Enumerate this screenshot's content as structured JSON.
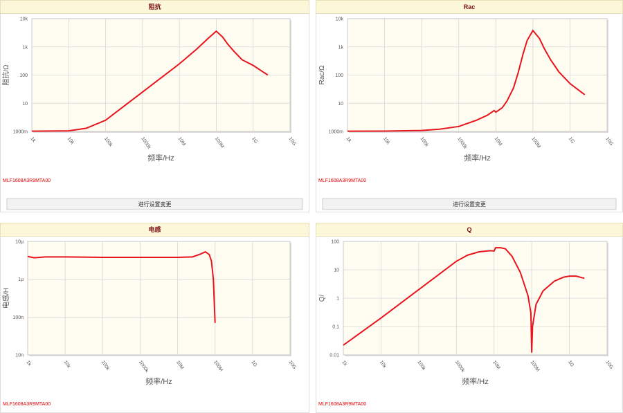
{
  "chart_data": [
    {
      "type": "line",
      "title": "阻抗",
      "xlabel": "频率/Hz",
      "ylabel": "阻抗/Ω",
      "note": "MLF1608A3R9MTA00",
      "button": "进行设置变更",
      "xscale": "log",
      "yscale": "log",
      "grid": true,
      "xlim": [
        1000,
        10000000000
      ],
      "ylim": [
        1,
        10000
      ],
      "xticks": [
        {
          "value": 1000,
          "label": "1k"
        },
        {
          "value": 10000,
          "label": "10k"
        },
        {
          "value": 100000,
          "label": "100k"
        },
        {
          "value": 1000000,
          "label": "1000k"
        },
        {
          "value": 10000000,
          "label": "10M"
        },
        {
          "value": 100000000,
          "label": "100M"
        },
        {
          "value": 1000000000,
          "label": "1G"
        },
        {
          "value": 10000000000,
          "label": "10G"
        }
      ],
      "yticks": [
        {
          "value": 1,
          "label": "1000m"
        },
        10,
        100,
        {
          "value": 1000,
          "label": "1k"
        },
        {
          "value": 10000,
          "label": "10k"
        }
      ],
      "x": [
        1000,
        10000,
        30000,
        100000,
        300000,
        1000000,
        3000000,
        10000000,
        30000000,
        60000000,
        100000000,
        150000000,
        200000000,
        300000000,
        500000000,
        1000000000,
        2500000000
      ],
      "series": [
        {
          "name": "阻抗",
          "color": "#e8141c",
          "values": [
            1.02,
            1.05,
            1.3,
            2.5,
            7.5,
            25,
            75,
            250,
            850,
            2000,
            3600,
            2200,
            1300,
            700,
            350,
            220,
            100
          ]
        }
      ]
    },
    {
      "type": "line",
      "title": "Rac",
      "xlabel": "频率/Hz",
      "ylabel": "Rac/Ω",
      "note": "MLF1608A3R9MTA00",
      "button": "进行设置变更",
      "xscale": "log",
      "yscale": "log",
      "grid": true,
      "xlim": [
        1000,
        10000000000
      ],
      "ylim": [
        1,
        10000
      ],
      "xticks": [
        {
          "value": 1000,
          "label": "1k"
        },
        {
          "value": 10000,
          "label": "10k"
        },
        {
          "value": 100000,
          "label": "100k"
        },
        {
          "value": 1000000,
          "label": "1000k"
        },
        {
          "value": 10000000,
          "label": "10M"
        },
        {
          "value": 100000000,
          "label": "100M"
        },
        {
          "value": 1000000000,
          "label": "1G"
        },
        {
          "value": 10000000000,
          "label": "10G"
        }
      ],
      "yticks": [
        {
          "value": 1,
          "label": "1000m"
        },
        10,
        100,
        {
          "value": 1000,
          "label": "1k"
        },
        {
          "value": 10000,
          "label": "10k"
        }
      ],
      "x": [
        1000,
        10000,
        100000,
        300000,
        1000000,
        3000000,
        6000000,
        9000000,
        10000000,
        15000000,
        20000000,
        30000000,
        40000000,
        55000000,
        70000000,
        100000000,
        150000000,
        200000000,
        300000000,
        500000000,
        1000000000,
        2500000000
      ],
      "series": [
        {
          "name": "Rac",
          "color": "#e8141c",
          "values": [
            1.02,
            1.03,
            1.08,
            1.2,
            1.5,
            2.5,
            3.8,
            5.5,
            4.8,
            7,
            12,
            35,
            120,
            600,
            1700,
            3800,
            2000,
            900,
            350,
            130,
            50,
            20
          ]
        }
      ]
    },
    {
      "type": "line",
      "title": "电感",
      "xlabel": "频率/Hz",
      "ylabel": "电感/H",
      "note": "MLF1608A3R9MTA00",
      "xscale": "log",
      "yscale": "log",
      "grid": true,
      "xlim": [
        1000,
        10000000000
      ],
      "ylim": [
        1e-08,
        1e-05
      ],
      "xticks": [
        {
          "value": 1000,
          "label": "1k"
        },
        {
          "value": 10000,
          "label": "10k"
        },
        {
          "value": 100000,
          "label": "100k"
        },
        {
          "value": 1000000,
          "label": "1000k"
        },
        {
          "value": 10000000,
          "label": "10M"
        },
        {
          "value": 100000000,
          "label": "100M"
        },
        {
          "value": 1000000000,
          "label": "1G"
        },
        {
          "value": 10000000000,
          "label": "10G"
        }
      ],
      "yticks": [
        {
          "value": 1e-08,
          "label": "10n"
        },
        {
          "value": 1e-07,
          "label": "100n"
        },
        {
          "value": 1e-06,
          "label": "1μ"
        },
        {
          "value": 1e-05,
          "label": "10μ"
        }
      ],
      "x": [
        1000,
        1500,
        3000,
        10000,
        100000,
        1000000,
        10000000,
        25000000,
        40000000,
        55000000,
        70000000,
        80000000,
        90000000,
        100000000
      ],
      "series": [
        {
          "name": "电感",
          "color": "#e8141c",
          "values": [
            4e-06,
            3.7e-06,
            3.9e-06,
            3.9e-06,
            3.8e-06,
            3.8e-06,
            3.8e-06,
            3.9e-06,
            4.6e-06,
            5.3e-06,
            4.5e-06,
            3e-06,
            1e-06,
            7e-08
          ]
        }
      ]
    },
    {
      "type": "line",
      "title": "Q",
      "xlabel": "频率/Hz",
      "ylabel": "Q/",
      "note": "MLF1608A3R9MTA00",
      "xscale": "log",
      "yscale": "log",
      "grid": true,
      "xlim": [
        1000,
        10000000000
      ],
      "ylim": [
        0.01,
        100
      ],
      "xticks": [
        {
          "value": 1000,
          "label": "1k"
        },
        {
          "value": 10000,
          "label": "10k"
        },
        {
          "value": 100000,
          "label": "100k"
        },
        {
          "value": 1000000,
          "label": "1000k"
        },
        {
          "value": 10000000,
          "label": "10M"
        },
        {
          "value": 100000000,
          "label": "100M"
        },
        {
          "value": 1000000000,
          "label": "1G"
        },
        {
          "value": 10000000000,
          "label": "10G"
        }
      ],
      "yticks": [
        0.01,
        0.1,
        1,
        10,
        100
      ],
      "x": [
        1000,
        10000,
        100000,
        1000000,
        2000000,
        4000000,
        8000000,
        10000000,
        11000000,
        15000000,
        20000000,
        30000000,
        50000000,
        80000000,
        95000000,
        100000000,
        105000000,
        130000000,
        200000000,
        400000000,
        700000000,
        1000000000,
        1500000000,
        2500000000
      ],
      "series": [
        {
          "name": "Q",
          "color": "#e8141c",
          "values": [
            0.022,
            0.2,
            2,
            20,
            33,
            43,
            47,
            46,
            60,
            60,
            55,
            30,
            8,
            1.2,
            0.3,
            0.012,
            0.1,
            0.6,
            1.8,
            4,
            5.5,
            6,
            6,
            5
          ]
        }
      ]
    }
  ]
}
